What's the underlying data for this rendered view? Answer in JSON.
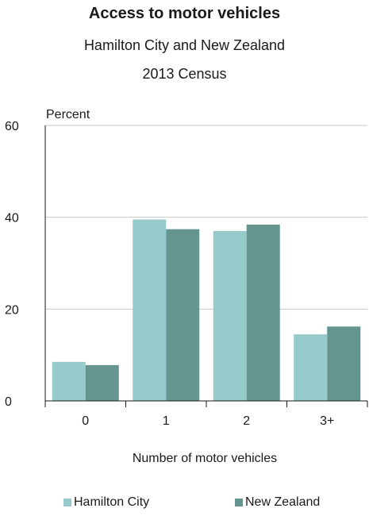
{
  "chart_data": {
    "type": "bar",
    "title": "Access to motor vehicles",
    "subtitle": [
      "Hamilton City and New Zealand",
      "2013 Census"
    ],
    "ylabel": "Percent",
    "xlabel": "Number of motor vehicles",
    "categories": [
      "0",
      "1",
      "2",
      "3+"
    ],
    "ylim": [
      0,
      60
    ],
    "yticks": [
      "0",
      "20",
      "40",
      "60"
    ],
    "grid": true,
    "legend_position": "bottom",
    "series": [
      {
        "name": "Hamilton City",
        "color": "#97cbcb",
        "values": [
          8.5,
          39.5,
          37.0,
          14.5
        ]
      },
      {
        "name": "New Zealand",
        "color": "#64968f",
        "values": [
          7.8,
          37.4,
          38.4,
          16.2
        ]
      }
    ]
  }
}
